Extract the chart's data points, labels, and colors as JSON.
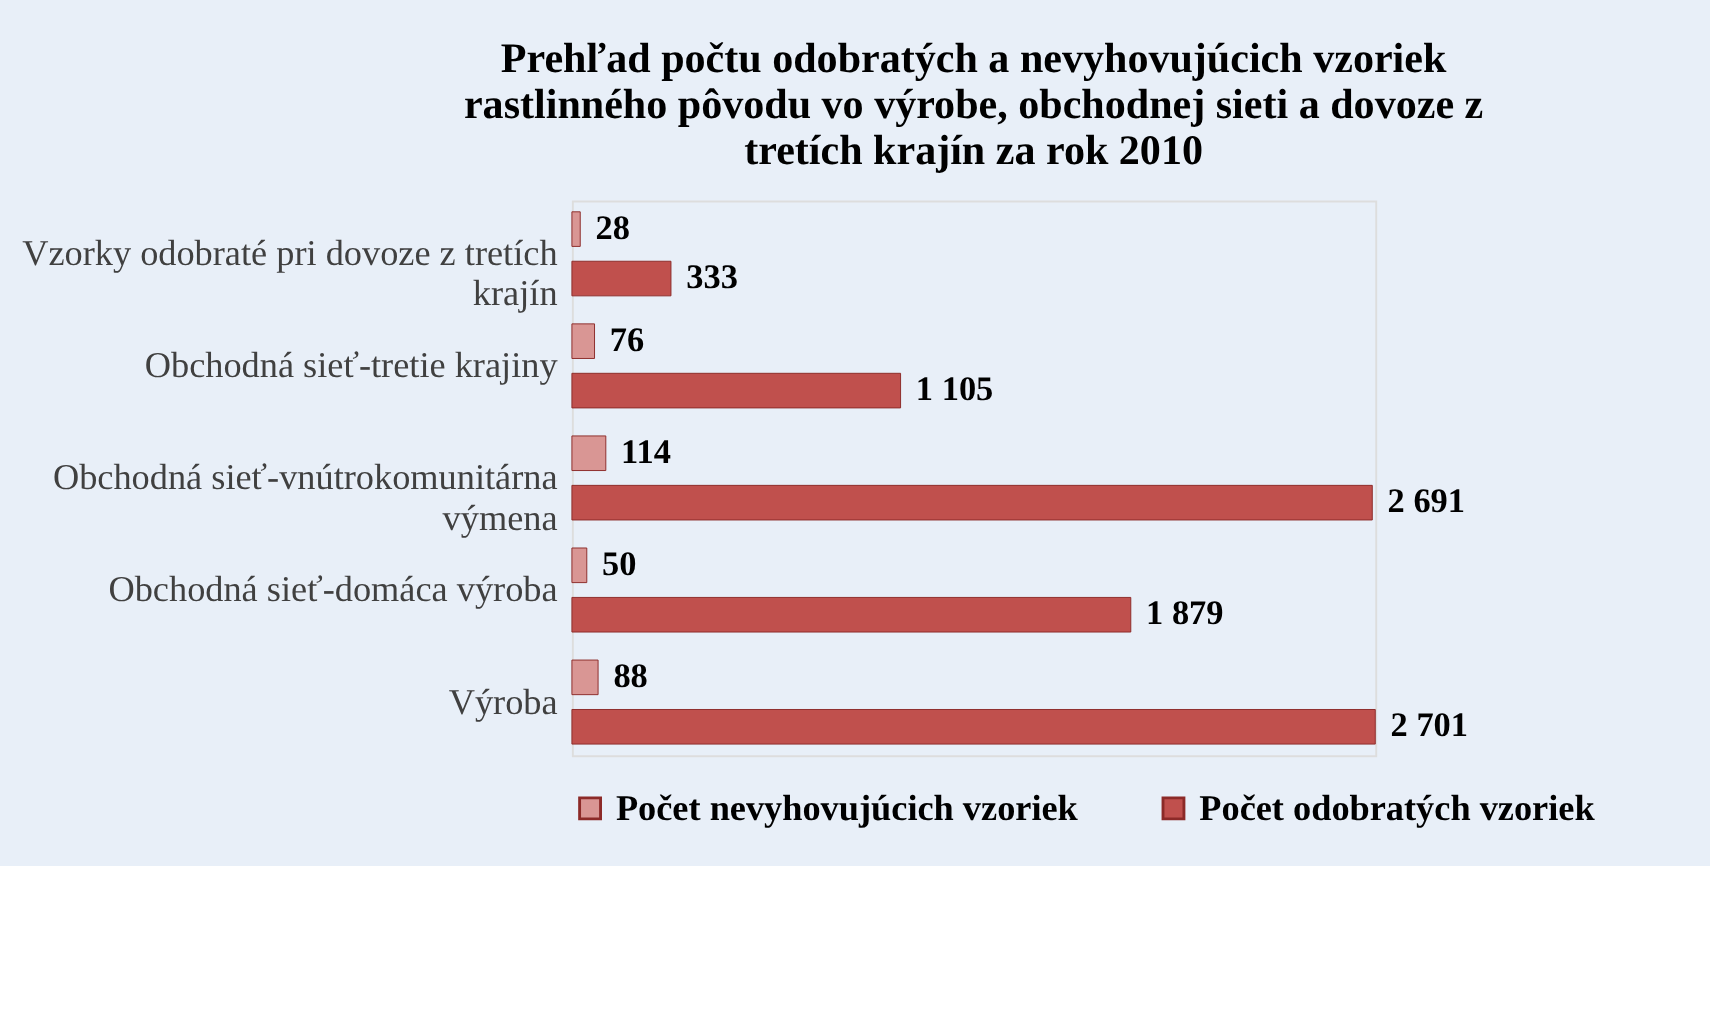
{
  "chart_data": {
    "type": "bar",
    "orientation": "horizontal",
    "title": "Prehľad počtu odobratých a nevyhovujúcich vzoriek rastlinného pôvodu  vo výrobe,  obchodnej sieti a dovoze z tretích krajín za rok 2010",
    "categories": [
      "Vzorky odobraté pri dovoze z tretích krajín",
      "Obchodná sieť-tretie krajiny",
      "Obchodná sieť-vnútrokomunitárna výmena",
      "Obchodná sieť-domáca výroba",
      "Výroba"
    ],
    "series": [
      {
        "name": "Počet nevyhovujúcich vzoriek",
        "color": "#d99694",
        "values": [
          28,
          76,
          114,
          50,
          88
        ],
        "value_labels": [
          "28",
          "76",
          "114",
          "50",
          "88"
        ]
      },
      {
        "name": "Počet odobratých vzoriek",
        "color": "#c0504d",
        "values": [
          333,
          1105,
          2691,
          1879,
          2701
        ],
        "value_labels": [
          "333",
          "1 105",
          "2 691",
          "1 879",
          "2 701"
        ]
      }
    ],
    "legend": "bottom"
  }
}
